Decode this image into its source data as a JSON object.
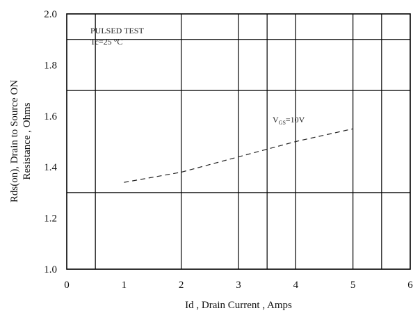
{
  "chart_data": {
    "type": "line",
    "title": "",
    "xlabel": "Id , Drain Current , Amps",
    "ylabel_line1": "Rds(on), Drain to Source ON",
    "ylabel_line2": "Resistance , Ohms",
    "xlim": [
      0,
      6
    ],
    "ylim": [
      1.0,
      2.0
    ],
    "x_ticks": [
      "0",
      "1",
      "2",
      "3",
      "4",
      "5",
      "6"
    ],
    "y_ticks": [
      "1.0",
      "1.2",
      "1.4",
      "1.6",
      "1.8",
      "2.0"
    ],
    "annotations": {
      "test_line1": "PULSED   TEST",
      "test_line2": "Tc=25 °C",
      "series_label_main": "V",
      "series_label_sub": "GS",
      "series_label_tail": "=10V"
    },
    "series": [
      {
        "name": "VGS=10V",
        "x": [
          1,
          2,
          3,
          4,
          5
        ],
        "y": [
          1.34,
          1.38,
          1.44,
          1.5,
          1.55
        ]
      }
    ],
    "grid": true
  }
}
